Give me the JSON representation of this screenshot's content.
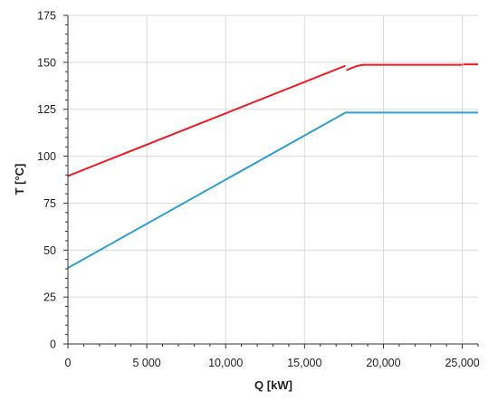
{
  "chart_data": {
    "type": "line",
    "title": "",
    "xlabel": "Q [kW]",
    "ylabel": "T [°C]",
    "xlim": [
      0,
      26000
    ],
    "ylim": [
      0,
      175
    ],
    "x_ticks": [
      0,
      5000,
      10000,
      15000,
      20000,
      25000
    ],
    "x_tick_labels": [
      "0",
      "5 000",
      "10,000",
      "15,000",
      "20,000",
      "25,000"
    ],
    "y_ticks": [
      0,
      25,
      50,
      75,
      100,
      125,
      150,
      175
    ],
    "y_tick_labels": [
      "0",
      "25",
      "50",
      "75",
      "100",
      "125",
      "150",
      "175"
    ],
    "grid": {
      "vertical": true,
      "horizontal": true
    },
    "legend": "none",
    "series": [
      {
        "color": "#ee1c25",
        "segments": [
          [
            [
              0,
              89.5
            ],
            [
              17600,
              148.2
            ]
          ],
          [
            [
              17650,
              145.8
            ],
            [
              18300,
              148.0
            ],
            [
              18700,
              148.7
            ],
            [
              25000,
              148.7
            ]
          ],
          [
            [
              25050,
              148.9
            ],
            [
              26000,
              148.9
            ]
          ]
        ]
      },
      {
        "color": "#2e9fd0",
        "segments": [
          [
            [
              0,
              40.5
            ],
            [
              17600,
              123.2
            ],
            [
              26000,
              123.2
            ]
          ]
        ]
      }
    ]
  }
}
